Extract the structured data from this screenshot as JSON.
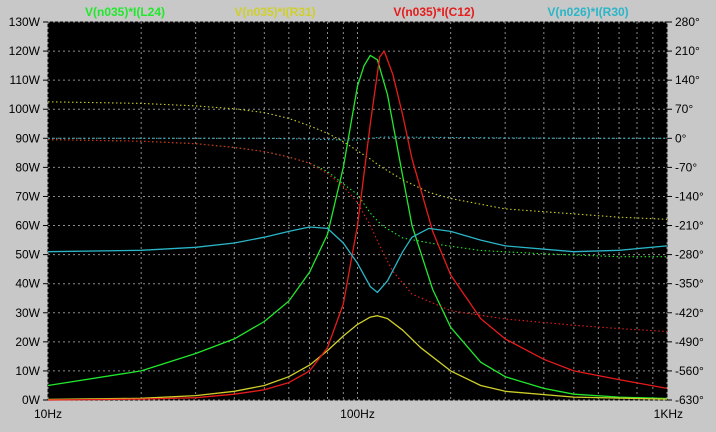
{
  "chart_data": {
    "type": "line",
    "x_scale": "log",
    "xlim": [
      10,
      1000
    ],
    "x_ticks": [
      "10Hz",
      "100Hz",
      "1KHz"
    ],
    "y_left": {
      "ylim": [
        0,
        130
      ],
      "ticks": [
        "0W",
        "10W",
        "20W",
        "30W",
        "40W",
        "50W",
        "60W",
        "70W",
        "80W",
        "90W",
        "100W",
        "110W",
        "120W",
        "130W"
      ]
    },
    "y_right": {
      "ylim": [
        -630,
        280
      ],
      "ticks": [
        "-630°",
        "-560°",
        "-490°",
        "-420°",
        "-350°",
        "-280°",
        "-210°",
        "-140°",
        "-70°",
        "0°",
        "70°",
        "140°",
        "210°",
        "280°"
      ]
    },
    "grid": true,
    "background": "#000000",
    "grid_color": "#8c8c8c",
    "series": [
      {
        "name": "V(n035)*I(L24)",
        "color": "#21e82c",
        "magnitude": [
          [
            10,
            5
          ],
          [
            20,
            10
          ],
          [
            30,
            16
          ],
          [
            40,
            21
          ],
          [
            50,
            27
          ],
          [
            60,
            34
          ],
          [
            70,
            44
          ],
          [
            80,
            57
          ],
          [
            90,
            80
          ],
          [
            100,
            108
          ],
          [
            105,
            115
          ],
          [
            110,
            118.5
          ],
          [
            116,
            117
          ],
          [
            125,
            105
          ],
          [
            140,
            77
          ],
          [
            150,
            60
          ],
          [
            175,
            38
          ],
          [
            200,
            25
          ],
          [
            250,
            13
          ],
          [
            300,
            8
          ],
          [
            400,
            4
          ],
          [
            500,
            2
          ],
          [
            700,
            1
          ],
          [
            1000,
            0.5
          ]
        ],
        "phase": [
          [
            10,
            -3
          ],
          [
            20,
            -7
          ],
          [
            30,
            -13
          ],
          [
            40,
            -22
          ],
          [
            50,
            -32
          ],
          [
            60,
            -45
          ],
          [
            70,
            -60
          ],
          [
            80,
            -80
          ],
          [
            90,
            -110
          ],
          [
            100,
            -135
          ],
          [
            110,
            -180
          ],
          [
            120,
            -210
          ],
          [
            140,
            -240
          ],
          [
            180,
            -255
          ],
          [
            250,
            -270
          ],
          [
            400,
            -278
          ],
          [
            700,
            -285
          ],
          [
            1000,
            -285
          ]
        ]
      },
      {
        "name": "V(n035)*I(R31)",
        "color": "#cfcf2a",
        "magnitude": [
          [
            10,
            0.2
          ],
          [
            20,
            0.6
          ],
          [
            30,
            1.5
          ],
          [
            40,
            3
          ],
          [
            50,
            5
          ],
          [
            60,
            8
          ],
          [
            70,
            12
          ],
          [
            80,
            17
          ],
          [
            90,
            22
          ],
          [
            100,
            26
          ],
          [
            110,
            28.5
          ],
          [
            116,
            29
          ],
          [
            125,
            28
          ],
          [
            140,
            24
          ],
          [
            160,
            18
          ],
          [
            200,
            10
          ],
          [
            250,
            5
          ],
          [
            300,
            3
          ],
          [
            500,
            1
          ],
          [
            1000,
            0.3
          ]
        ],
        "phase": [
          [
            10,
            88
          ],
          [
            20,
            84
          ],
          [
            30,
            78
          ],
          [
            40,
            71
          ],
          [
            50,
            62
          ],
          [
            60,
            48
          ],
          [
            70,
            30
          ],
          [
            80,
            12
          ],
          [
            90,
            -8
          ],
          [
            100,
            -30
          ],
          [
            110,
            -50
          ],
          [
            120,
            -70
          ],
          [
            140,
            -100
          ],
          [
            170,
            -130
          ],
          [
            200,
            -145
          ],
          [
            300,
            -170
          ],
          [
            500,
            -182
          ],
          [
            700,
            -190
          ],
          [
            1000,
            -195
          ]
        ]
      },
      {
        "name": "V(n035)*I(C12)",
        "color": "#e61b1b",
        "magnitude": [
          [
            10,
            0
          ],
          [
            20,
            0.3
          ],
          [
            30,
            0.8
          ],
          [
            40,
            2
          ],
          [
            50,
            3.5
          ],
          [
            60,
            6
          ],
          [
            70,
            10
          ],
          [
            80,
            18
          ],
          [
            90,
            33
          ],
          [
            100,
            60
          ],
          [
            110,
            95
          ],
          [
            118,
            118
          ],
          [
            122,
            120
          ],
          [
            130,
            112
          ],
          [
            140,
            98
          ],
          [
            150,
            83
          ],
          [
            175,
            58
          ],
          [
            200,
            43
          ],
          [
            250,
            28
          ],
          [
            300,
            21
          ],
          [
            400,
            14
          ],
          [
            500,
            10
          ],
          [
            700,
            7
          ],
          [
            1000,
            4
          ]
        ],
        "phase": [
          [
            10,
            -3
          ],
          [
            20,
            -7
          ],
          [
            30,
            -13
          ],
          [
            40,
            -22
          ],
          [
            50,
            -32
          ],
          [
            60,
            -45
          ],
          [
            70,
            -60
          ],
          [
            80,
            -85
          ],
          [
            90,
            -115
          ],
          [
            100,
            -155
          ],
          [
            110,
            -210
          ],
          [
            120,
            -270
          ],
          [
            130,
            -320
          ],
          [
            150,
            -375
          ],
          [
            200,
            -415
          ],
          [
            300,
            -435
          ],
          [
            500,
            -450
          ],
          [
            700,
            -458
          ],
          [
            1000,
            -465
          ]
        ]
      },
      {
        "name": "V(n026)*I(R30)",
        "color": "#2ab6c8",
        "magnitude": [
          [
            10,
            51
          ],
          [
            20,
            51.5
          ],
          [
            30,
            52.5
          ],
          [
            40,
            54
          ],
          [
            50,
            56
          ],
          [
            60,
            58
          ],
          [
            70,
            59.5
          ],
          [
            80,
            59
          ],
          [
            90,
            54
          ],
          [
            100,
            47
          ],
          [
            110,
            39
          ],
          [
            116,
            37
          ],
          [
            125,
            41
          ],
          [
            140,
            51
          ],
          [
            150,
            56
          ],
          [
            170,
            59
          ],
          [
            200,
            58
          ],
          [
            250,
            55
          ],
          [
            300,
            53
          ],
          [
            500,
            51
          ],
          [
            700,
            51.5
          ],
          [
            1000,
            53
          ]
        ],
        "phase": [
          [
            10,
            0
          ],
          [
            50,
            0
          ],
          [
            70,
            -2
          ],
          [
            80,
            -3
          ],
          [
            90,
            -4
          ],
          [
            100,
            -4
          ],
          [
            110,
            0
          ],
          [
            120,
            3
          ],
          [
            140,
            3
          ],
          [
            200,
            2
          ],
          [
            500,
            0
          ],
          [
            1000,
            0
          ]
        ]
      }
    ]
  }
}
